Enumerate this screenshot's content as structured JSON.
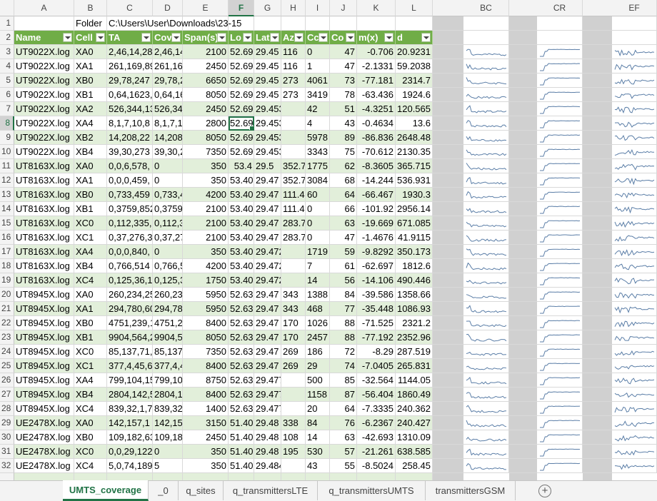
{
  "column_headers": [
    "A",
    "B",
    "C",
    "D",
    "E",
    "F",
    "G",
    "H",
    "I",
    "J",
    "K",
    "L",
    "BC",
    "CR",
    "EF"
  ],
  "selected_column": "F",
  "selected_row": "8",
  "rows": [
    {
      "n": "1",
      "cells": [
        "",
        "Folder",
        "C:\\Users\\User\\Downloads\\23-15",
        "",
        "",
        "",
        "",
        "",
        "",
        "",
        "",
        ""
      ]
    },
    {
      "n": "2",
      "cells": [
        "Name",
        "Cell",
        "TA",
        "Cov",
        "Span(s)",
        "Lo",
        "Lat",
        "Az",
        "Cc",
        "Co",
        "m(x)",
        "d"
      ]
    },
    {
      "n": "3",
      "cells": [
        "UT9022X.log",
        "XA0",
        "2,46,14,28",
        "2,46,14",
        "2100",
        "52.69",
        "29.45",
        "116",
        "0",
        "47",
        "-0.706",
        "20.9231"
      ]
    },
    {
      "n": "4",
      "cells": [
        "UT9022X.log",
        "XA1",
        "261,169,89",
        "261,16",
        "2450",
        "52.69",
        "29.45",
        "116",
        "1",
        "47",
        "-2.1331",
        "59.2038"
      ]
    },
    {
      "n": "5",
      "cells": [
        "UT9022X.log",
        "XB0",
        "29,78,247",
        "29,78,2",
        "6650",
        "52.69",
        "29.45",
        "273",
        "4061",
        "73",
        "-77.181",
        "2314.7"
      ]
    },
    {
      "n": "6",
      "cells": [
        "UT9022X.log",
        "XB1",
        "0,64,1623,",
        "0,64,16",
        "8050",
        "52.69",
        "29.45",
        "273",
        "3419",
        "78",
        "-63.436",
        "1924.6"
      ]
    },
    {
      "n": "7",
      "cells": [
        "UT9022X.log",
        "XA2",
        "526,344,13",
        "526,34",
        "2450",
        "52.69",
        "29.45308",
        "",
        "42",
        "51",
        "-4.3251",
        "120.565"
      ]
    },
    {
      "n": "8",
      "cells": [
        "UT9022X.log",
        "XA4",
        "8,1,7,10,8",
        "8,1,7,1",
        "2800",
        "52.69",
        "29.45308",
        "",
        "4",
        "43",
        "-0.4634",
        "13.6"
      ]
    },
    {
      "n": "9",
      "cells": [
        "UT9022X.log",
        "XB2",
        "14,208,22",
        "14,208",
        "8050",
        "52.69",
        "29.45308",
        "",
        "5978",
        "89",
        "-86.836",
        "2648.48"
      ]
    },
    {
      "n": "10",
      "cells": [
        "UT9022X.log",
        "XB4",
        "39,30,273",
        "39,30,2",
        "7350",
        "52.69",
        "29.45308",
        "",
        "3343",
        "75",
        "-70.612",
        "2130.35"
      ]
    },
    {
      "n": "11",
      "cells": [
        "UT8163X.log",
        "XA0",
        "0,0,6,578,",
        "0",
        "350",
        "53.4",
        "29.5",
        "352.7",
        "1775",
        "62",
        "-8.3605",
        "365.715"
      ]
    },
    {
      "n": "12",
      "cells": [
        "UT8163X.log",
        "XA1",
        "0,0,0,459,",
        "0",
        "350",
        "53.40",
        "29.47",
        "352.7",
        "3084",
        "68",
        "-14.244",
        "536.931"
      ]
    },
    {
      "n": "13",
      "cells": [
        "UT8163X.log",
        "XB0",
        "0,733,459",
        "0,733,4",
        "4200",
        "53.40",
        "29.47",
        "111.4",
        "60",
        "64",
        "-66.467",
        "1930.3"
      ]
    },
    {
      "n": "14",
      "cells": [
        "UT8163X.log",
        "XB1",
        "0,3759,852",
        "0,3759",
        "2100",
        "53.40",
        "29.47",
        "111.4",
        "0",
        "66",
        "-101.92",
        "2956.14"
      ]
    },
    {
      "n": "15",
      "cells": [
        "UT8163X.log",
        "XC0",
        "0,112,335,",
        "0,112,3",
        "2100",
        "53.40",
        "29.47",
        "283.7",
        "0",
        "63",
        "-19.669",
        "671.085"
      ]
    },
    {
      "n": "16",
      "cells": [
        "UT8163X.log",
        "XC1",
        "0,37,276,3",
        "0,37,27",
        "2100",
        "53.40",
        "29.47",
        "283.7",
        "0",
        "47",
        "-1.4676",
        "41.9115"
      ]
    },
    {
      "n": "17",
      "cells": [
        "UT8163X.log",
        "XA4",
        "0,0,0,840,",
        "0",
        "350",
        "53.40",
        "29.472164",
        "",
        "1719",
        "59",
        "-9.8292",
        "350.173"
      ]
    },
    {
      "n": "18",
      "cells": [
        "UT8163X.log",
        "XB4",
        "0,766,514",
        "0,766,5",
        "4200",
        "53.40",
        "29.472164",
        "",
        "7",
        "61",
        "-62.697",
        "1812.6"
      ]
    },
    {
      "n": "19",
      "cells": [
        "UT8163X.log",
        "XC4",
        "0,125,36,1",
        "0,125,3",
        "1750",
        "53.40",
        "29.472164",
        "",
        "14",
        "56",
        "-14.106",
        "490.446"
      ]
    },
    {
      "n": "20",
      "cells": [
        "UT8945X.log",
        "XA0",
        "260,234,25",
        "260,23",
        "5950",
        "52.63",
        "29.47",
        "343",
        "1388",
        "84",
        "-39.586",
        "1358.66"
      ]
    },
    {
      "n": "21",
      "cells": [
        "UT8945X.log",
        "XA1",
        "294,780,60",
        "294,78",
        "5950",
        "52.63",
        "29.47",
        "343",
        "468",
        "77",
        "-35.448",
        "1086.93"
      ]
    },
    {
      "n": "22",
      "cells": [
        "UT8945X.log",
        "XB0",
        "4751,239,1",
        "4751,2",
        "8400",
        "52.63",
        "29.47",
        "170",
        "1026",
        "88",
        "-71.525",
        "2321.2"
      ]
    },
    {
      "n": "23",
      "cells": [
        "UT8945X.log",
        "XB1",
        "9904,564,2",
        "9904,5",
        "8050",
        "52.63",
        "29.47",
        "170",
        "2457",
        "88",
        "-77.192",
        "2352.96"
      ]
    },
    {
      "n": "24",
      "cells": [
        "UT8945X.log",
        "XC0",
        "85,137,71,",
        "85,137",
        "7350",
        "52.63",
        "29.47",
        "269",
        "186",
        "72",
        "-8.29",
        "287.519"
      ]
    },
    {
      "n": "25",
      "cells": [
        "UT8945X.log",
        "XC1",
        "377,4,45,6",
        "377,4,4",
        "8400",
        "52.63",
        "29.47",
        "269",
        "29",
        "74",
        "-7.0405",
        "265.831"
      ]
    },
    {
      "n": "26",
      "cells": [
        "UT8945X.log",
        "XA4",
        "799,104,15",
        "799,10",
        "8750",
        "52.63",
        "29.47709",
        "",
        "500",
        "85",
        "-32.564",
        "1144.05"
      ]
    },
    {
      "n": "27",
      "cells": [
        "UT8945X.log",
        "XB4",
        "2804,142,5",
        "2804,1",
        "8400",
        "52.63",
        "29.47709",
        "",
        "1158",
        "87",
        "-56.404",
        "1860.49"
      ]
    },
    {
      "n": "28",
      "cells": [
        "UT8945X.log",
        "XC4",
        "839,32,1,7",
        "839,32",
        "1400",
        "52.63",
        "29.47709",
        "",
        "20",
        "64",
        "-7.3335",
        "240.362"
      ]
    },
    {
      "n": "29",
      "cells": [
        "UE2478X.log",
        "XA0",
        "142,157,1",
        "142,15",
        "3150",
        "51.40",
        "29.48",
        "338",
        "84",
        "76",
        "-6.2367",
        "240.427"
      ]
    },
    {
      "n": "30",
      "cells": [
        "UE2478X.log",
        "XB0",
        "109,182,63",
        "109,18",
        "2450",
        "51.40",
        "29.48",
        "108",
        "14",
        "63",
        "-42.693",
        "1310.09"
      ]
    },
    {
      "n": "31",
      "cells": [
        "UE2478X.log",
        "XC0",
        "0,0,29,122",
        "0",
        "350",
        "51.40",
        "29.48",
        "195",
        "530",
        "57",
        "-21.261",
        "638.585"
      ]
    },
    {
      "n": "32",
      "cells": [
        "UE2478X.log",
        "XC4",
        "5,0,74,189",
        "5",
        "350",
        "51.40",
        "29.48471",
        "",
        "43",
        "55",
        "-8.5024",
        "258.45"
      ]
    }
  ],
  "sheet_tabs": [
    "UMTS_coverage",
    "_0",
    "q_sites",
    "q_transmittersLTE",
    "q_transmittersUMTS",
    "transmittersGSM"
  ],
  "active_tab": "UMTS_coverage",
  "colors": {
    "table_header": "#70ad47",
    "band": "#e2efda",
    "accent": "#217346",
    "sparkline": "#5b7ea7"
  }
}
